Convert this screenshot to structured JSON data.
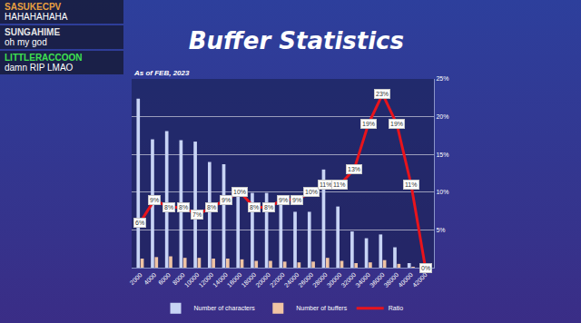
{
  "chart_data": {
    "type": "bar",
    "title": "Buffer Statistics",
    "subtitle": "As of FEB, 2023",
    "categories": [
      "2000",
      "4000",
      "6000",
      "8000",
      "10000",
      "12000",
      "14000",
      "16000",
      "18000",
      "20000",
      "22000",
      "24000",
      "26000",
      "28000",
      "30000",
      "32000",
      "34000",
      "36000",
      "38000",
      "40000",
      "42000"
    ],
    "series": [
      {
        "name": "Number of characters",
        "type": "bar",
        "color": "#c8d4f5",
        "values": [
          22.4,
          17.0,
          18.1,
          16.9,
          16.7,
          14.0,
          13.7,
          10.7,
          9.9,
          9.9,
          8.3,
          7.4,
          7.4,
          13.0,
          8.1,
          4.8,
          3.9,
          4.4,
          2.7,
          0.6,
          0.1
        ]
      },
      {
        "name": "Number of buffers",
        "type": "bar",
        "color": "#f0c4a4",
        "values": [
          1.2,
          1.4,
          1.5,
          1.3,
          1.3,
          1.2,
          1.2,
          1.1,
          0.9,
          0.9,
          0.8,
          0.7,
          0.8,
          1.3,
          0.9,
          0.6,
          0.7,
          1.0,
          0.5,
          0.1,
          0
        ]
      },
      {
        "name": "Ratio",
        "type": "line",
        "color": "#e8141c",
        "axis": "y2",
        "data_labels": true,
        "values": [
          6,
          9,
          8,
          8,
          7,
          8,
          9,
          10,
          8,
          8,
          9,
          9,
          10,
          11,
          11,
          13,
          19,
          23,
          19,
          11,
          0
        ],
        "value_labels": [
          "6%",
          "9%",
          "8%",
          "8%",
          "7%",
          "8%",
          "9%",
          "10%",
          "8%",
          "8%",
          "9%",
          "9%",
          "10%",
          "11%",
          "11%",
          "13%",
          "19%",
          "23%",
          "19%",
          "11%",
          "0%"
        ]
      }
    ],
    "ylim": [
      0,
      25
    ],
    "y2lim": [
      0,
      25
    ],
    "y2ticks": [
      {
        "value": 5,
        "label": "5%"
      },
      {
        "value": 10,
        "label": "10%"
      },
      {
        "value": 15,
        "label": "15%"
      },
      {
        "value": 20,
        "label": "20%"
      },
      {
        "value": 25,
        "label": "25%"
      }
    ],
    "grid": true,
    "legend": "bottom"
  },
  "chat": [
    {
      "user": "SASUKECPV",
      "color": "#e8a040",
      "message": "HAHAHAHAHA"
    },
    {
      "user": "SUNGAHIME",
      "color": "#e6e6e6",
      "message": "oh my god"
    },
    {
      "user": "LITTLERACCOON",
      "color": "#3ee050",
      "message": "damn RIP LMAO"
    }
  ]
}
